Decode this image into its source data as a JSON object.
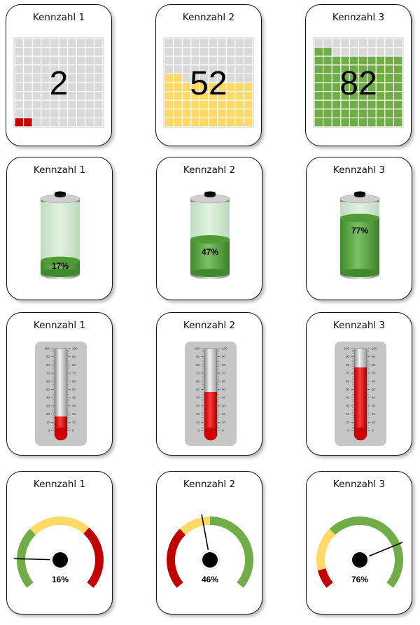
{
  "chart_data": [
    {
      "type": "waffle",
      "panels": [
        {
          "title": "Kennzahl 1",
          "value": 2,
          "label": "2",
          "color": "#c00000"
        },
        {
          "title": "Kennzahl 2",
          "value": 52,
          "label": "52",
          "color": "#ffd966"
        },
        {
          "title": "Kennzahl 3",
          "value": 82,
          "label": "82",
          "color": "#70ad47"
        }
      ]
    },
    {
      "type": "battery",
      "panels": [
        {
          "title": "Kennzahl 1",
          "value": 17,
          "label": "17%"
        },
        {
          "title": "Kennzahl 2",
          "value": 47,
          "label": "47%"
        },
        {
          "title": "Kennzahl 3",
          "value": 77,
          "label": "77%"
        }
      ]
    },
    {
      "type": "thermometer",
      "scale": {
        "min": 0,
        "max": 100,
        "ticks": [
          "0",
          "10",
          "20",
          "30",
          "40",
          "50",
          "60",
          "70",
          "80",
          "90",
          "100"
        ]
      },
      "panels": [
        {
          "title": "Kennzahl 1",
          "value": 17
        },
        {
          "title": "Kennzahl 2",
          "value": 47
        },
        {
          "title": "Kennzahl 3",
          "value": 77
        }
      ]
    },
    {
      "type": "gauge",
      "panels": [
        {
          "title": "Kennzahl 1",
          "value": 16,
          "label": "16%",
          "bands": [
            {
              "to": 33,
              "color": "#70ad47"
            },
            {
              "to": 66,
              "color": "#ffd966"
            },
            {
              "to": 100,
              "color": "#c00000"
            }
          ]
        },
        {
          "title": "Kennzahl 2",
          "value": 46,
          "label": "46%",
          "bands": [
            {
              "to": 33,
              "color": "#c00000"
            },
            {
              "to": 50,
              "color": "#ffd966"
            },
            {
              "to": 100,
              "color": "#70ad47"
            }
          ]
        },
        {
          "title": "Kennzahl 3",
          "value": 76,
          "label": "76%",
          "bands": [
            {
              "to": 10,
              "color": "#c00000"
            },
            {
              "to": 33,
              "color": "#ffd966"
            },
            {
              "to": 100,
              "color": "#70ad47"
            }
          ]
        }
      ]
    }
  ]
}
